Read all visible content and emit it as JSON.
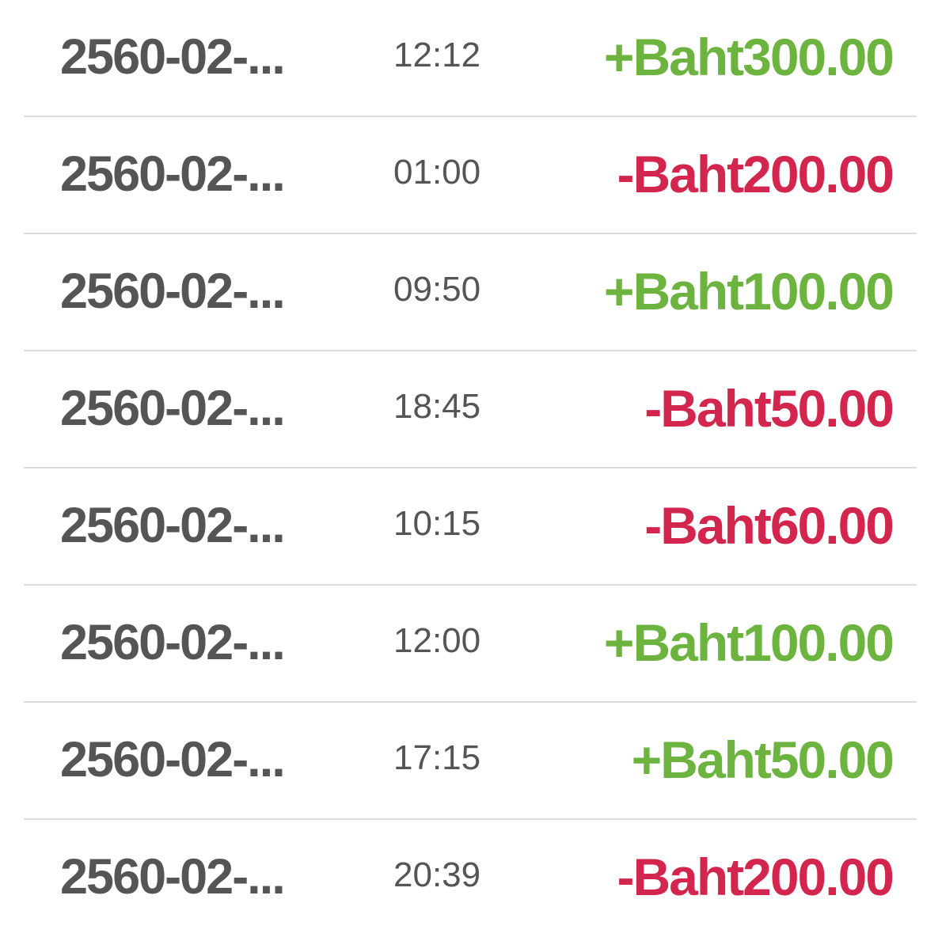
{
  "colors": {
    "credit": "#6db33f",
    "debit": "#d2264f",
    "text": "#555555",
    "divider": "#dcdcdc"
  },
  "transactions": [
    {
      "date": "2560-02-...",
      "time": "12:12",
      "amount": "+Baht300.00",
      "type": "credit"
    },
    {
      "date": "2560-02-...",
      "time": "01:00",
      "amount": "-Baht200.00",
      "type": "debit"
    },
    {
      "date": "2560-02-...",
      "time": "09:50",
      "amount": "+Baht100.00",
      "type": "credit"
    },
    {
      "date": "2560-02-...",
      "time": "18:45",
      "amount": "-Baht50.00",
      "type": "debit"
    },
    {
      "date": "2560-02-...",
      "time": "10:15",
      "amount": "-Baht60.00",
      "type": "debit"
    },
    {
      "date": "2560-02-...",
      "time": "12:00",
      "amount": "+Baht100.00",
      "type": "credit"
    },
    {
      "date": "2560-02-...",
      "time": "17:15",
      "amount": "+Baht50.00",
      "type": "credit"
    },
    {
      "date": "2560-02-...",
      "time": "20:39",
      "amount": "-Baht200.00",
      "type": "debit"
    }
  ]
}
